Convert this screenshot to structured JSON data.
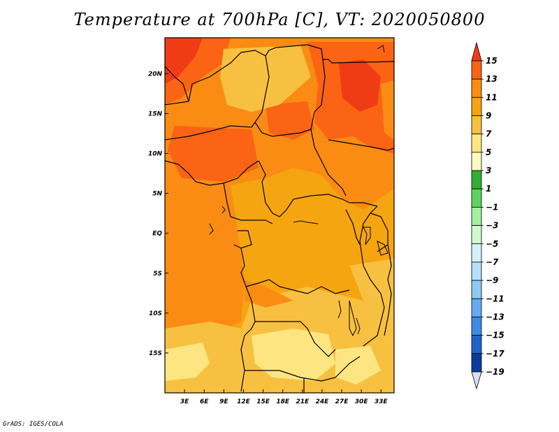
{
  "title": "Temperature at 700hPa [C], VT: 2020050800",
  "credit": "GrADS: IGES/COLA",
  "map": {
    "lat_labels": [
      "20N",
      "15N",
      "10N",
      "5N",
      "EQ",
      "5S",
      "10S",
      "15S"
    ],
    "lat_values": [
      20,
      15,
      10,
      5,
      0,
      -5,
      -10,
      -15
    ],
    "lon_labels": [
      "3E",
      "6E",
      "9E",
      "12E",
      "15E",
      "18E",
      "21E",
      "24E",
      "27E",
      "30E",
      "33E"
    ],
    "lon_values": [
      3,
      6,
      9,
      12,
      15,
      18,
      21,
      24,
      27,
      30,
      33
    ],
    "lon_range": [
      0,
      35
    ],
    "lat_range": [
      -20,
      24.5
    ]
  },
  "colorbar": {
    "labels": [
      "15",
      "13",
      "11",
      "9",
      "7",
      "5",
      "3",
      "1",
      "−1",
      "−3",
      "−5",
      "−7",
      "−9",
      "−11",
      "−13",
      "−15",
      "−17",
      "−19"
    ],
    "colors": [
      "#f03c14",
      "#fa6414",
      "#fa8c14",
      "#f5a50f",
      "#f8c040",
      "#fde682",
      "#fefcc0",
      "#30b030",
      "#5fd25f",
      "#a0f0a0",
      "#d2f8d2",
      "#d7f0f8",
      "#b4e0fa",
      "#8ec8f5",
      "#64aaf0",
      "#3c8ce6",
      "#1e64c8",
      "#0a3ca0",
      "#001478",
      "#dcdcf5"
    ]
  }
}
